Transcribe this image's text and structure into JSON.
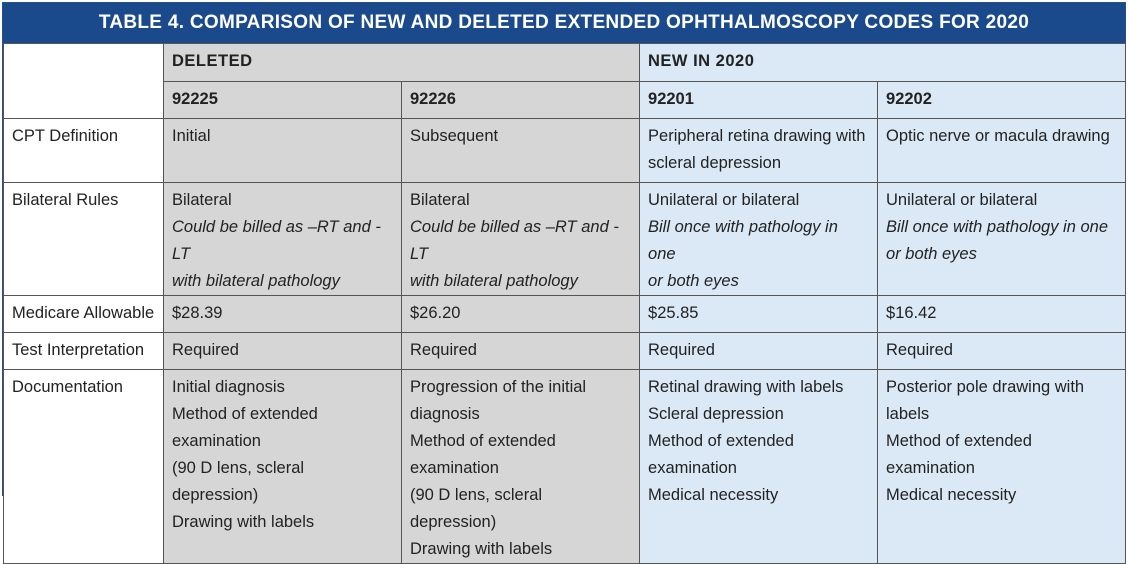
{
  "title": "TABLE 4. COMPARISON OF NEW AND DELETED EXTENDED OPHTHALMOSCOPY CODES FOR 2020",
  "groups": {
    "deleted": "DELETED",
    "new": "NEW IN 2020"
  },
  "codes": [
    "92225",
    "92226",
    "92201",
    "92202"
  ],
  "rows": [
    {
      "label": "CPT Definition",
      "cells": [
        {
          "lines": [
            "Initial"
          ]
        },
        {
          "lines": [
            "Subsequent"
          ]
        },
        {
          "lines": [
            "Peripheral retina drawing with",
            "scleral depression"
          ]
        },
        {
          "lines": [
            "Optic nerve or macula drawing"
          ]
        }
      ]
    },
    {
      "label": "Bilateral Rules",
      "cells": [
        {
          "lines": [
            "Bilateral"
          ],
          "italic": [
            "Could be billed as –RT and -LT",
            "with bilateral pathology"
          ]
        },
        {
          "lines": [
            "Bilateral"
          ],
          "italic": [
            "Could be billed as –RT and -LT",
            "with bilateral pathology"
          ]
        },
        {
          "lines": [
            "Unilateral or bilateral"
          ],
          "italic": [
            "Bill once with pathology in one",
            "or both eyes"
          ]
        },
        {
          "lines": [
            "Unilateral or bilateral"
          ],
          "italic": [
            "Bill once with pathology in one",
            "or both eyes"
          ]
        }
      ]
    },
    {
      "label": "Medicare Allowable",
      "cells": [
        {
          "lines": [
            "$28.39"
          ]
        },
        {
          "lines": [
            "$26.20"
          ]
        },
        {
          "lines": [
            "$25.85"
          ]
        },
        {
          "lines": [
            "$16.42"
          ]
        }
      ]
    },
    {
      "label": "Test Interpretation",
      "cells": [
        {
          "lines": [
            "Required"
          ]
        },
        {
          "lines": [
            "Required"
          ]
        },
        {
          "lines": [
            "Required"
          ]
        },
        {
          "lines": [
            "Required"
          ]
        }
      ]
    },
    {
      "label": "Documentation",
      "cells": [
        {
          "lines": [
            "Initial diagnosis",
            "Method of extended examination",
            "(90 D lens, scleral depression)",
            "Drawing with labels"
          ]
        },
        {
          "lines": [
            "Progression of the initial",
            "diagnosis",
            "Method of extended examination",
            "(90 D lens, scleral depression)",
            "Drawing with labels"
          ]
        },
        {
          "lines": [
            "Retinal drawing with labels",
            "Scleral depression",
            "Method of extended examination",
            "Medical necessity"
          ]
        },
        {
          "lines": [
            "Posterior pole drawing with",
            "labels",
            "Method of extended examination",
            "Medical necessity"
          ]
        }
      ]
    }
  ],
  "colors": {
    "title_bg": "#1b4a8c",
    "deleted_bg": "#d6d6d6",
    "new_bg": "#dbe9f7"
  }
}
